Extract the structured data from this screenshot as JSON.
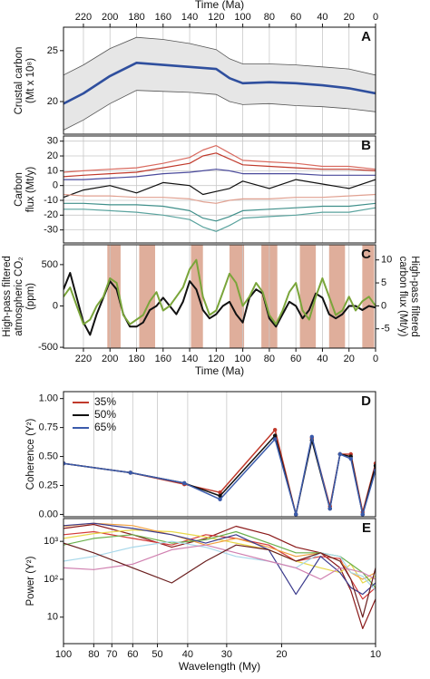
{
  "chart_data": [
    {
      "type": "line",
      "panel_label": "A",
      "xlabel": "Time (Ma)",
      "xaxis": "top",
      "ylabel": [
        "Crustal carbon",
        "(Mt x 10⁸)"
      ],
      "xlim": [
        235,
        0
      ],
      "xticks": [
        220,
        200,
        180,
        160,
        140,
        120,
        100,
        80,
        60,
        40,
        20,
        0
      ],
      "ylim": [
        16.8,
        27.3
      ],
      "yticks": [
        20,
        25
      ],
      "grid": "x",
      "x": [
        235,
        220,
        200,
        180,
        160,
        140,
        120,
        110,
        100,
        80,
        60,
        40,
        20,
        0
      ],
      "band": {
        "color": "#e6e6e6",
        "line_color": "#555555",
        "upper": [
          22.6,
          23.6,
          25.2,
          26.3,
          26.1,
          25.7,
          25.1,
          24.2,
          23.7,
          23.7,
          23.6,
          23.4,
          23.2,
          22.6
        ],
        "lower": [
          17.2,
          18.2,
          19.8,
          21.1,
          21.0,
          20.9,
          20.7,
          20.0,
          19.7,
          19.8,
          19.6,
          19.5,
          19.3,
          19.0
        ]
      },
      "series": [
        {
          "color": "#2f4f9e",
          "values": [
            19.8,
            20.8,
            22.5,
            23.8,
            23.6,
            23.4,
            23.2,
            22.3,
            21.8,
            21.9,
            21.8,
            21.6,
            21.3,
            20.8
          ]
        }
      ]
    },
    {
      "type": "line",
      "panel_label": "B",
      "xaxis": "hidden",
      "ylabel": [
        "Carbon",
        "flux (Mt/y)"
      ],
      "xlim": [
        235,
        0
      ],
      "xticks": [
        220,
        200,
        180,
        160,
        140,
        120,
        100,
        80,
        60,
        40,
        20,
        0
      ],
      "ylim": [
        -38.8,
        33.5
      ],
      "yticks": [
        -30,
        -20,
        -10,
        0,
        10,
        20,
        30
      ],
      "grid": "both",
      "x": [
        235,
        220,
        200,
        180,
        160,
        140,
        130,
        120,
        110,
        100,
        80,
        60,
        40,
        20,
        0
      ],
      "series": [
        {
          "color": "#c0392b",
          "values": [
            6,
            7,
            8,
            9,
            12,
            15,
            20,
            22,
            18,
            14,
            13,
            12,
            11,
            11,
            10
          ]
        },
        {
          "color": "#d96a5f",
          "values": [
            9,
            10,
            11,
            12,
            15,
            19,
            24,
            27,
            22,
            17,
            16,
            15,
            13,
            13,
            11
          ]
        },
        {
          "color": "#4a4a9c",
          "values": [
            4,
            4,
            5,
            6,
            8,
            9,
            10,
            11,
            10,
            8,
            8,
            8,
            7,
            7,
            7
          ]
        },
        {
          "color": "#111111",
          "values": [
            -8,
            -3,
            0,
            -5,
            2,
            0,
            -6,
            -4,
            -2,
            3,
            -2,
            4,
            1,
            -2,
            4
          ]
        },
        {
          "color": "#e0a090",
          "values": [
            -6,
            -7,
            -7,
            -8,
            -8,
            -9,
            -11,
            -12,
            -10,
            -9,
            -9,
            -8,
            -8,
            -7,
            -6
          ]
        },
        {
          "color": "#3f8f8a",
          "values": [
            -12,
            -12,
            -13,
            -13,
            -14,
            -17,
            -22,
            -24,
            -21,
            -17,
            -16,
            -15,
            -14,
            -14,
            -12
          ]
        },
        {
          "color": "#5aa39e",
          "values": [
            -16,
            -16,
            -17,
            -18,
            -20,
            -23,
            -28,
            -31,
            -27,
            -22,
            -21,
            -20,
            -18,
            -18,
            -15
          ]
        }
      ]
    },
    {
      "type": "line",
      "panel_label": "C",
      "xlabel": "Time (Ma)",
      "xaxis": "bottom",
      "ylabel": [
        "High-pass filtered",
        "atmospheric CO₂",
        "(ppm)"
      ],
      "y2label": [
        "High-pass filtered",
        "carbon flux (Mt/y)"
      ],
      "xlim": [
        235,
        0
      ],
      "xticks": [
        220,
        200,
        180,
        160,
        140,
        120,
        100,
        80,
        60,
        40,
        20,
        0
      ],
      "ylim": [
        -510,
        740
      ],
      "yticks": [
        -500,
        0,
        500
      ],
      "y2lim": [
        -9.2,
        13.3
      ],
      "y2ticks": [
        -5,
        0,
        5,
        10
      ],
      "grid": "x",
      "highlight_color": "#d9a089",
      "highlight_ranges": [
        [
          202,
          192
        ],
        [
          178,
          166
        ],
        [
          139,
          130
        ],
        [
          110,
          99
        ],
        [
          86,
          74
        ],
        [
          57,
          45
        ],
        [
          35,
          23
        ],
        [
          10,
          1
        ]
      ],
      "x": [
        235,
        230,
        225,
        220,
        215,
        210,
        205,
        200,
        195,
        190,
        185,
        180,
        175,
        170,
        165,
        160,
        155,
        150,
        145,
        140,
        135,
        130,
        125,
        120,
        115,
        110,
        105,
        100,
        95,
        90,
        85,
        80,
        75,
        70,
        65,
        60,
        55,
        50,
        45,
        40,
        35,
        30,
        25,
        20,
        15,
        10,
        5,
        0
      ],
      "series": [
        {
          "color": "#111111",
          "axis": "y",
          "values": [
            200,
            400,
            100,
            -200,
            -350,
            -100,
            100,
            300,
            200,
            -100,
            -250,
            -250,
            -200,
            -50,
            0,
            100,
            0,
            -100,
            50,
            300,
            200,
            -50,
            -150,
            -100,
            0,
            50,
            -100,
            -200,
            100,
            200,
            150,
            -150,
            -250,
            -100,
            50,
            0,
            -150,
            -50,
            150,
            100,
            -100,
            -150,
            -100,
            0,
            0,
            -50,
            0,
            -20
          ]
        },
        {
          "color": "#7aa53a",
          "axis": "y2",
          "values": [
            2,
            4,
            0,
            -4,
            -3,
            0,
            2,
            6,
            5,
            -2,
            -4,
            -3,
            -2,
            1,
            3,
            -1,
            0,
            2,
            4,
            8,
            10,
            2,
            -2,
            -1,
            3,
            7,
            5,
            0,
            2,
            5,
            3,
            -2,
            -4,
            -1,
            3,
            5,
            -1,
            -3,
            2,
            6,
            2,
            -2,
            -1,
            2,
            -1,
            1,
            2,
            0
          ]
        }
      ]
    },
    {
      "type": "line",
      "panel_label": "D",
      "xaxis": "hidden",
      "ylabel": [
        "Coherence (Y²)"
      ],
      "legend": "upper left",
      "markers": true,
      "xscale": "log",
      "xlim": [
        100,
        10
      ],
      "xticks": [
        100,
        80,
        70,
        60,
        50,
        40,
        30,
        20,
        10
      ],
      "ylim": [
        -0.02,
        1.06
      ],
      "yticks": [
        {
          "value": 0,
          "label": "0.00"
        },
        {
          "value": 0.25,
          "label": "0.25"
        },
        {
          "value": 0.5,
          "label": "0.50"
        },
        {
          "value": 0.75,
          "label": "0.75"
        },
        {
          "value": 1,
          "label": "1.00"
        }
      ],
      "grid": "x",
      "x": [
        100,
        61,
        41,
        31.5,
        21,
        18,
        16,
        14,
        13,
        12,
        11,
        10
      ],
      "series": [
        {
          "name": "35%",
          "color": "#c0392b",
          "values": [
            0.44,
            0.36,
            0.26,
            0.19,
            0.73,
            0.0,
            0.66,
            0.07,
            0.52,
            0.52,
            0.02,
            0.44
          ]
        },
        {
          "name": "50%",
          "color": "#111111",
          "values": [
            0.44,
            0.36,
            0.27,
            0.16,
            0.68,
            0.0,
            0.64,
            0.05,
            0.52,
            0.5,
            0.0,
            0.42
          ]
        },
        {
          "name": "65%",
          "color": "#3b5bab",
          "values": [
            0.44,
            0.36,
            0.27,
            0.13,
            0.65,
            0.0,
            0.67,
            0.05,
            0.52,
            0.48,
            0.0,
            0.38
          ]
        }
      ]
    },
    {
      "type": "line",
      "panel_label": "E",
      "xlabel": "Wavelength (My)",
      "xaxis": "bottom",
      "ylabel": [
        "Power (Y²)"
      ],
      "xscale": "log",
      "xlim": [
        100,
        10
      ],
      "xticks": [
        100,
        80,
        70,
        60,
        50,
        40,
        30,
        20,
        10
      ],
      "yscale": "log",
      "ylim": [
        2,
        4000
      ],
      "yticks": [
        10,
        {
          "value": 100,
          "label": "10²"
        },
        {
          "value": 1000,
          "label": "10³"
        }
      ],
      "grid": "x",
      "x": [
        100,
        80,
        60,
        45,
        35,
        28,
        22,
        18,
        15,
        13,
        12,
        11,
        10
      ],
      "series": [
        {
          "color": "#8b1a1a",
          "values": [
            2200,
            2800,
            1500,
            700,
            1200,
            2500,
            1500,
            700,
            500,
            200,
            50,
            5,
            30
          ]
        },
        {
          "color": "#d43a3a",
          "values": [
            1500,
            1800,
            1200,
            800,
            1500,
            1200,
            800,
            300,
            400,
            350,
            100,
            30,
            60
          ]
        },
        {
          "color": "#e8d84a",
          "values": [
            1200,
            1600,
            2000,
            1800,
            1300,
            900,
            600,
            300,
            200,
            150,
            250,
            80,
            120
          ]
        },
        {
          "color": "#f0a040",
          "values": [
            2500,
            3000,
            2600,
            1500,
            800,
            1200,
            700,
            400,
            500,
            300,
            150,
            100,
            150
          ]
        },
        {
          "color": "#6ab04c",
          "values": [
            800,
            1200,
            1500,
            900,
            1100,
            1800,
            900,
            500,
            500,
            400,
            250,
            150,
            60
          ]
        },
        {
          "color": "#3a3a8c",
          "values": [
            2600,
            3000,
            2200,
            1500,
            900,
            1500,
            600,
            40,
            400,
            150,
            60,
            40,
            80
          ]
        },
        {
          "color": "#a8d8ea",
          "values": [
            300,
            400,
            700,
            1000,
            700,
            400,
            300,
            200,
            500,
            400,
            150,
            120,
            50
          ]
        },
        {
          "color": "#d080b0",
          "values": [
            200,
            180,
            250,
            600,
            800,
            500,
            300,
            200,
            100,
            200,
            180,
            150,
            100
          ]
        },
        {
          "color": "#6b1f1f",
          "values": [
            900,
            500,
            200,
            80,
            300,
            800,
            600,
            300,
            500,
            300,
            100,
            10,
            200
          ]
        }
      ]
    }
  ]
}
